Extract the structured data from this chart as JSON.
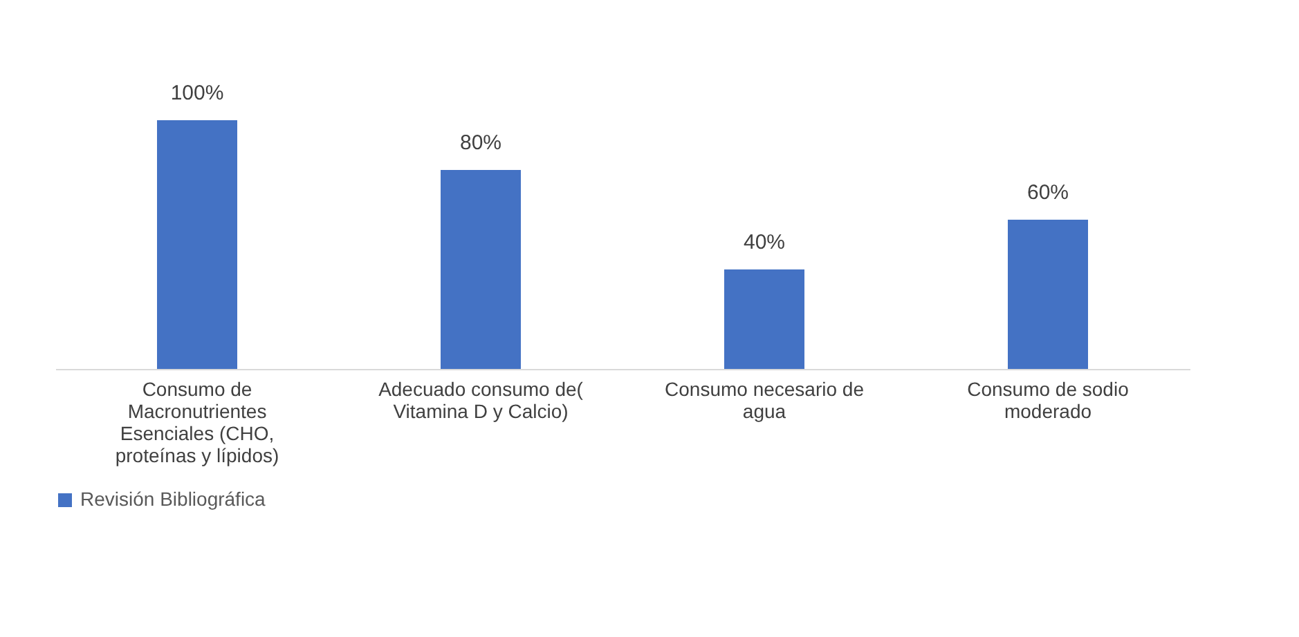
{
  "chart_data": {
    "type": "bar",
    "categories": [
      "Consumo de Macronutrientes Esenciales (CHO, proteínas y lípidos)",
      "Adecuado consumo de( Vitamina D y Calcio)",
      "Consumo necesario de agua",
      "Consumo de sodio moderado"
    ],
    "series": [
      {
        "name": "Revisión Bibliográfica",
        "color": "#4472c4",
        "values": [
          100,
          80,
          40,
          60
        ],
        "value_labels": [
          "100%",
          "80%",
          "40%",
          "60%"
        ]
      }
    ],
    "legend": "bottom",
    "grid": false
  }
}
